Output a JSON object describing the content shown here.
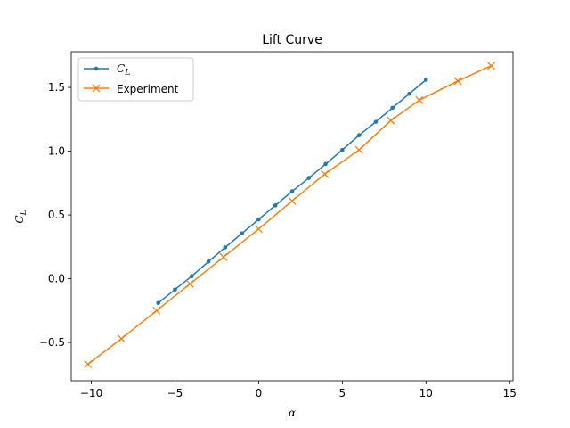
{
  "chart_data": {
    "type": "line",
    "title": "Lift Curve",
    "xlabel": "α",
    "ylabel": "C",
    "ylabel_sub": "L",
    "xlim": [
      -11.2,
      15.2
    ],
    "ylim": [
      -0.8,
      1.78
    ],
    "xticks": [
      -10,
      -5,
      0,
      5,
      10,
      15
    ],
    "xtick_labels": [
      "−10",
      "−5",
      "0",
      "5",
      "10",
      "15"
    ],
    "yticks": [
      -0.5,
      0.0,
      0.5,
      1.0,
      1.5
    ],
    "ytick_labels": [
      "−0.5",
      "0.0",
      "0.5",
      "1.0",
      "1.5"
    ],
    "grid": false,
    "legend": "top-left",
    "series": [
      {
        "name": "C",
        "name_sub": "L",
        "color": "#1f77b4",
        "marker": "dot",
        "x": [
          -6,
          -5,
          -4,
          -3,
          -2,
          -1,
          0,
          1,
          2,
          3,
          4,
          5,
          6,
          7,
          8,
          9,
          10
        ],
        "y": [
          -0.19,
          -0.085,
          0.02,
          0.135,
          0.245,
          0.355,
          0.465,
          0.575,
          0.685,
          0.79,
          0.9,
          1.01,
          1.125,
          1.23,
          1.34,
          1.45,
          1.56
        ]
      },
      {
        "name": "Experiment",
        "color": "#ff7f0e",
        "marker": "x",
        "x": [
          -10.2,
          -8.2,
          -6.1,
          -4.1,
          -2.1,
          0.0,
          2.0,
          3.95,
          6.0,
          7.9,
          9.6,
          11.9,
          13.9
        ],
        "y": [
          -0.67,
          -0.47,
          -0.25,
          -0.04,
          0.17,
          0.39,
          0.61,
          0.82,
          1.01,
          1.24,
          1.4,
          1.55,
          1.67
        ]
      }
    ]
  }
}
